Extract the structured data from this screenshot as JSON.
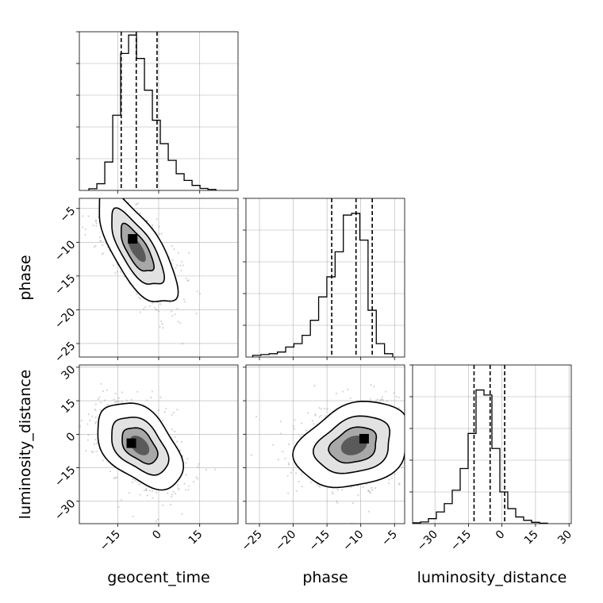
{
  "chart_data": {
    "type": "corner",
    "grid": true,
    "parameters": [
      {
        "key": "geocent_time",
        "label": "geocent_time",
        "range": [
          -29,
          29
        ],
        "ticks": [
          -15,
          0,
          15
        ],
        "tick_labels": [
          "−15",
          "0",
          "15"
        ],
        "quantiles": [
          -13.7,
          -8.2,
          -0.6
        ]
      },
      {
        "key": "phase",
        "label": "phase",
        "range": [
          -27,
          -3.5
        ],
        "ticks": [
          -25,
          -20,
          -15,
          -10,
          -5
        ],
        "tick_labels": [
          "−25",
          "−20",
          "−15",
          "−10",
          "−5"
        ],
        "quantiles": [
          -14.3,
          -10.7,
          -8.3
        ]
      },
      {
        "key": "luminosity_distance",
        "label": "luminosity_distance",
        "range": [
          -40,
          31
        ],
        "ticks": [
          -30,
          -15,
          0,
          15,
          30
        ],
        "tick_labels": [
          "−30",
          "−15",
          "0",
          "15",
          "30"
        ],
        "quantiles": [
          -12.5,
          -5.3,
          1.2
        ]
      }
    ],
    "histograms": {
      "geocent_time": {
        "bin_start": -25.5,
        "bin_width": 2.9,
        "values": [
          0.01,
          0.04,
          0.17,
          0.45,
          0.82,
          0.93,
          0.79,
          0.6,
          0.42,
          0.28,
          0.18,
          0.1,
          0.06,
          0.03,
          0.012,
          0.006
        ]
      },
      "phase": {
        "bin_start": -26,
        "bin_width": 1.22,
        "values": [
          0.01,
          0.015,
          0.02,
          0.03,
          0.06,
          0.08,
          0.13,
          0.22,
          0.36,
          0.48,
          0.63,
          0.85,
          0.86,
          0.7,
          0.28,
          0.08,
          0.02
        ]
      },
      "luminosity_distance": {
        "bin_start": -40,
        "bin_width": 3.55,
        "values": [
          0.005,
          0.01,
          0.03,
          0.07,
          0.12,
          0.2,
          0.33,
          0.54,
          0.8,
          0.77,
          0.45,
          0.19,
          0.09,
          0.04,
          0.02,
          0.008,
          0.003
        ]
      }
    },
    "pairs": [
      {
        "x": "geocent_time",
        "y": "phase",
        "mean": [
          -8,
          -11
        ],
        "sd": [
          6,
          3.5
        ],
        "rho": -0.72,
        "peak": [
          -9.5,
          -9.5
        ]
      },
      {
        "x": "geocent_time",
        "y": "luminosity_distance",
        "mean": [
          -7,
          -5
        ],
        "sd": [
          6.5,
          8
        ],
        "rho": -0.45,
        "peak": [
          -10,
          -4
        ]
      },
      {
        "x": "phase",
        "y": "luminosity_distance",
        "mean": [
          -11,
          -5
        ],
        "sd": [
          3.5,
          8
        ],
        "rho": 0.25,
        "peak": [
          -9.5,
          -2
        ]
      }
    ],
    "contour_levels": [
      1.0,
      1.6,
      2.4
    ]
  }
}
